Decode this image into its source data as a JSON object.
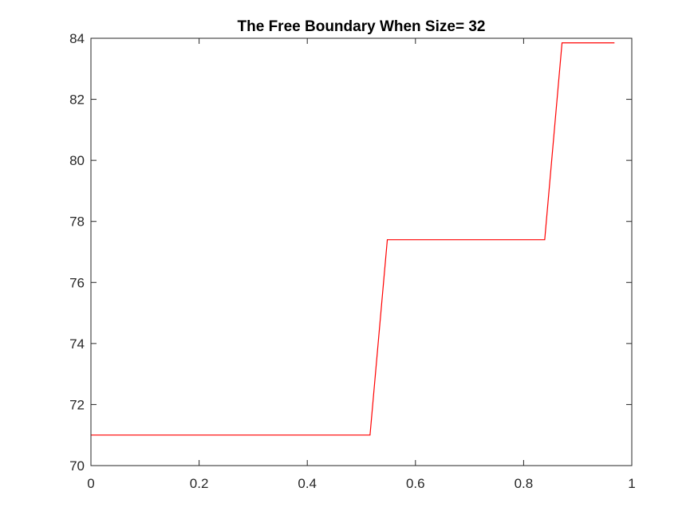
{
  "chart_data": {
    "type": "line",
    "title": "The Free Boundary When Size= 32",
    "xlabel": "",
    "ylabel": "",
    "xlim": [
      0,
      1
    ],
    "ylim": [
      70,
      84
    ],
    "xticks": [
      0,
      0.2,
      0.4,
      0.6,
      0.8,
      1
    ],
    "xtick_labels": [
      "0",
      "0.2",
      "0.4",
      "0.6",
      "0.8",
      "1"
    ],
    "yticks": [
      70,
      72,
      74,
      76,
      78,
      80,
      82,
      84
    ],
    "ytick_labels": [
      "70",
      "72",
      "74",
      "76",
      "78",
      "80",
      "82",
      "84"
    ],
    "grid": false,
    "box": true,
    "series": [
      {
        "color": "#ff0000",
        "x": [
          0,
          0.516,
          0.548,
          0.839,
          0.871,
          0.968
        ],
        "y": [
          71.0,
          71.0,
          77.4,
          77.4,
          83.85,
          83.85
        ]
      }
    ]
  }
}
